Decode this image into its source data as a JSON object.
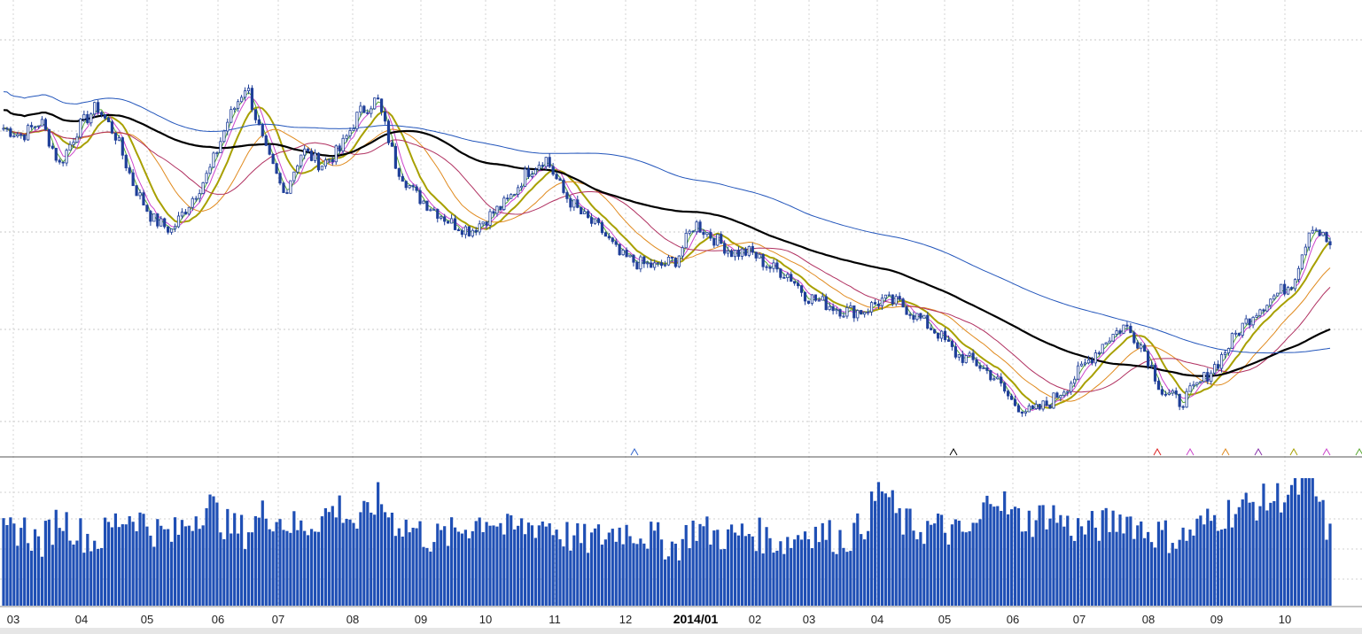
{
  "chart_data": {
    "type": "candlestick",
    "panels": [
      "price",
      "volume"
    ],
    "x_axis": {
      "tick_labels": [
        "03",
        "04",
        "05",
        "06",
        "07",
        "08",
        "09",
        "10",
        "11",
        "12",
        "2014/01",
        "02",
        "03",
        "04",
        "05",
        "06",
        "07",
        "08",
        "09",
        "10"
      ],
      "emphasized_label": "2014/01"
    },
    "price_panel": {
      "grid": "dashed horizontal and vertical",
      "y_scale_relative": true,
      "close_series_relative_level": [
        0.8,
        0.78,
        0.82,
        0.7,
        0.8,
        0.86,
        0.78,
        0.64,
        0.55,
        0.52,
        0.6,
        0.68,
        0.82,
        0.92,
        0.74,
        0.62,
        0.74,
        0.7,
        0.74,
        0.84,
        0.88,
        0.7,
        0.62,
        0.58,
        0.54,
        0.52,
        0.56,
        0.6,
        0.68,
        0.72,
        0.62,
        0.56,
        0.52,
        0.45,
        0.43,
        0.42,
        0.44,
        0.54,
        0.5,
        0.46,
        0.46,
        0.42,
        0.4,
        0.34,
        0.32,
        0.3,
        0.3,
        0.33,
        0.32,
        0.28,
        0.24,
        0.18,
        0.16,
        0.12,
        0.05,
        0.02,
        0.05,
        0.1,
        0.16,
        0.22,
        0.26,
        0.2,
        0.08,
        0.05,
        0.1,
        0.16,
        0.24,
        0.3,
        0.34,
        0.38,
        0.54,
        0.48
      ],
      "moving_averages": [
        {
          "color": "#a8a000",
          "window": 10
        },
        {
          "color": "#cc44cc",
          "window": 5
        },
        {
          "color": "#e08a1e",
          "window": 20
        },
        {
          "color": "#b03060",
          "window": 30
        },
        {
          "color": "#5aa832",
          "window": 3
        },
        {
          "color": "#000000",
          "window": 60
        },
        {
          "color": "#2255bb",
          "window": 120
        }
      ],
      "candle_color": "#1f3f99",
      "signal_markers": [
        {
          "category": "12",
          "color": "#3366cc"
        },
        {
          "category": "05",
          "color": "#000000"
        },
        {
          "category": "08",
          "color": "#dd2222"
        },
        {
          "category": "08",
          "color": "#cc44cc"
        },
        {
          "category": "09",
          "color": "#e08a1e"
        },
        {
          "category": "09",
          "color": "#8833aa"
        },
        {
          "category": "10",
          "color": "#a8a000"
        },
        {
          "category": "10",
          "color": "#cc44cc"
        },
        {
          "category": "10",
          "color": "#5aa832"
        }
      ]
    },
    "volume_panel": {
      "bar_color": "#1f4fb5",
      "volume_relative": [
        0.55,
        0.62,
        0.48,
        0.7,
        0.58,
        0.5,
        0.66,
        0.72,
        0.6,
        0.54,
        0.68,
        0.8,
        0.62,
        0.58,
        0.74,
        0.66,
        0.6,
        0.7,
        0.78,
        0.62,
        0.84,
        0.66,
        0.6,
        0.52,
        0.56,
        0.64,
        0.7,
        0.58,
        0.62,
        0.66,
        0.56,
        0.5,
        0.54,
        0.6,
        0.58,
        0.52,
        0.46,
        0.62,
        0.56,
        0.54,
        0.58,
        0.52,
        0.5,
        0.6,
        0.56,
        0.52,
        0.62,
        0.94,
        0.66,
        0.6,
        0.62,
        0.56,
        0.58,
        0.92,
        0.7,
        0.66,
        0.74,
        0.62,
        0.6,
        0.64,
        0.7,
        0.6,
        0.56,
        0.52,
        0.62,
        0.7,
        0.76,
        0.8,
        0.84,
        0.9,
        0.98,
        0.54
      ]
    }
  }
}
